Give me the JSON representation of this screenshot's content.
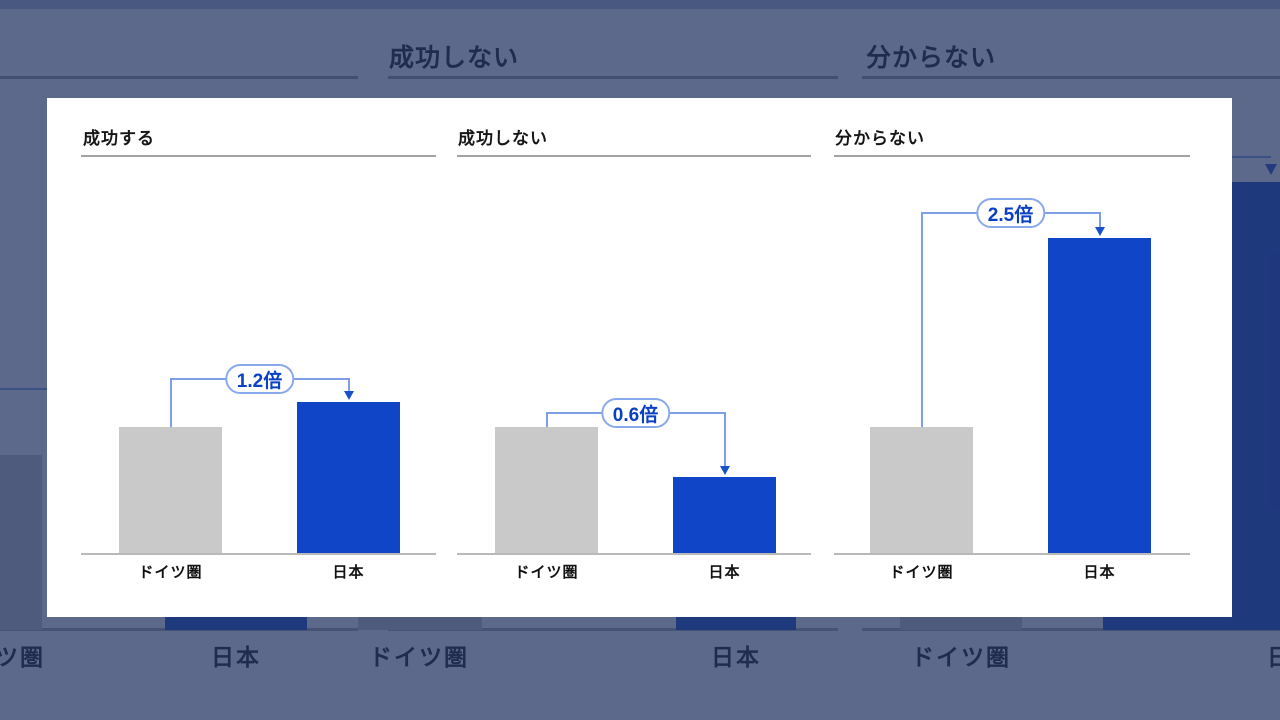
{
  "colors": {
    "bar_gray": "#c9c9c9",
    "bar_blue": "#1145c7",
    "annotation_text_blue": "#0a41c4",
    "annotation_line_blue": "#7da0e8",
    "arrowhead_blue": "#1b50cc",
    "overlay": "rgba(36,52,99,0.74)",
    "card_background": "#ffffff"
  },
  "background": {
    "top_titles": [
      "成功しない",
      "分からない"
    ],
    "x_labels": [
      "ドイツ圏",
      "日本"
    ]
  },
  "chart_data": [
    {
      "type": "bar",
      "title": "成功する",
      "categories": [
        "ドイツ圏",
        "日本"
      ],
      "values": [
        1.0,
        1.2
      ],
      "annotation": "1.2倍",
      "bar_colors": [
        "#c9c9c9",
        "#1145c7"
      ],
      "xlabel": "",
      "ylabel": "",
      "note": "values are relative ratios, ドイツ圏 = 1.0 baseline; no y-axis shown"
    },
    {
      "type": "bar",
      "title": "成功しない",
      "categories": [
        "ドイツ圏",
        "日本"
      ],
      "values": [
        1.0,
        0.6
      ],
      "annotation": "0.6倍",
      "bar_colors": [
        "#c9c9c9",
        "#1145c7"
      ],
      "xlabel": "",
      "ylabel": "",
      "note": "values are relative ratios, ドイツ圏 = 1.0 baseline; no y-axis shown"
    },
    {
      "type": "bar",
      "title": "分からない",
      "categories": [
        "ドイツ圏",
        "日本"
      ],
      "values": [
        1.0,
        2.5
      ],
      "annotation": "2.5倍",
      "bar_colors": [
        "#c9c9c9",
        "#1145c7"
      ],
      "xlabel": "",
      "ylabel": "",
      "note": "values are relative ratios, ドイツ圏 = 1.0 baseline; no y-axis shown"
    }
  ]
}
